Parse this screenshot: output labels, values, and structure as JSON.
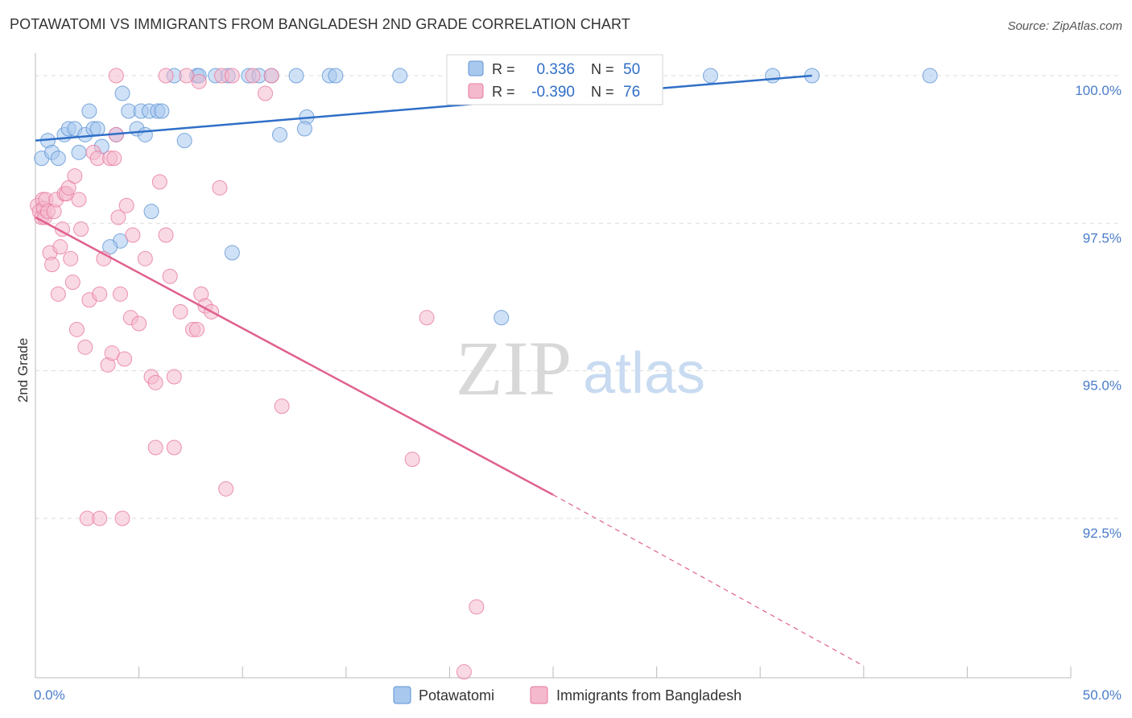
{
  "title": "POTAWATOMI VS IMMIGRANTS FROM BANGLADESH 2ND GRADE CORRELATION CHART",
  "source": "Source: ZipAtlas.com",
  "watermark": {
    "zip": "ZIP",
    "atlas": "atlas"
  },
  "colors": {
    "blue_fill": "#a8c8ee",
    "blue_stroke": "#5e93d6",
    "blue_line": "#2f6fc8",
    "pink_fill": "#f4b9cd",
    "pink_stroke": "#e7799e",
    "pink_line": "#e0608f",
    "axis_text": "#4a7cc9",
    "grid": "#dddddd"
  },
  "legend": {
    "r_label": "R =",
    "n_label": "N =",
    "rows": [
      {
        "r": "0.336",
        "n": "50"
      },
      {
        "r": "-0.390",
        "n": "76"
      }
    ]
  },
  "chart_data": {
    "type": "scatter",
    "title": "POTAWATOMI VS IMMIGRANTS FROM BANGLADESH 2ND GRADE CORRELATION CHART",
    "xlabel": "",
    "ylabel": "2nd Grade",
    "xlim": [
      0,
      50
    ],
    "ylim": [
      89.8,
      100.3
    ],
    "x_tick_labels": [
      "0.0%",
      "50.0%"
    ],
    "y_ticks": [
      100.0,
      97.5,
      95.0,
      92.5
    ],
    "y_tick_labels": [
      "100.0%",
      "97.5%",
      "95.0%",
      "92.5%"
    ],
    "grid": true,
    "legend_position": "bottom",
    "series": [
      {
        "name": "Potawatomi",
        "color": "#a8c8ee",
        "trend": {
          "x": [
            0,
            37.5
          ],
          "y": [
            98.9,
            100.0
          ]
        },
        "points": [
          [
            0.3,
            98.6
          ],
          [
            0.6,
            98.9
          ],
          [
            0.8,
            98.7
          ],
          [
            1.1,
            98.6
          ],
          [
            1.4,
            99.0
          ],
          [
            1.6,
            99.1
          ],
          [
            1.9,
            99.1
          ],
          [
            2.1,
            98.7
          ],
          [
            2.4,
            99.0
          ],
          [
            2.6,
            99.4
          ],
          [
            2.8,
            99.1
          ],
          [
            3.0,
            99.1
          ],
          [
            3.2,
            98.8
          ],
          [
            3.9,
            99.0
          ],
          [
            4.2,
            99.7
          ],
          [
            4.5,
            99.4
          ],
          [
            4.9,
            99.1
          ],
          [
            5.1,
            99.4
          ],
          [
            5.3,
            99.0
          ],
          [
            5.5,
            99.4
          ],
          [
            5.9,
            99.4
          ],
          [
            6.1,
            99.4
          ],
          [
            6.7,
            100.0
          ],
          [
            7.2,
            98.9
          ],
          [
            7.8,
            100.0
          ],
          [
            7.9,
            100.0
          ],
          [
            8.7,
            100.0
          ],
          [
            9.3,
            100.0
          ],
          [
            10.3,
            100.0
          ],
          [
            10.8,
            100.0
          ],
          [
            11.4,
            100.0
          ],
          [
            12.6,
            100.0
          ],
          [
            13.1,
            99.3
          ],
          [
            14.2,
            100.0
          ],
          [
            14.5,
            100.0
          ],
          [
            11.8,
            99.0
          ],
          [
            13.0,
            99.1
          ],
          [
            17.6,
            100.0
          ],
          [
            22.0,
            100.0
          ],
          [
            25.4,
            99.9
          ],
          [
            26.6,
            100.0
          ],
          [
            32.6,
            100.0
          ],
          [
            35.6,
            100.0
          ],
          [
            37.5,
            100.0
          ],
          [
            43.2,
            100.0
          ],
          [
            5.6,
            97.7
          ],
          [
            4.1,
            97.2
          ],
          [
            3.6,
            97.1
          ],
          [
            9.5,
            97.0
          ],
          [
            22.5,
            95.9
          ]
        ]
      },
      {
        "name": "Immigrants from Bangladesh",
        "color": "#f4b9cd",
        "trend": {
          "x": [
            0,
            25.0
          ],
          "y": [
            97.6,
            92.9
          ]
        },
        "trend_dashed": {
          "x": [
            25.0,
            40.0
          ],
          "y": [
            92.9,
            90.0
          ]
        },
        "points": [
          [
            0.1,
            97.8
          ],
          [
            0.2,
            97.7
          ],
          [
            0.3,
            97.6
          ],
          [
            0.35,
            97.9
          ],
          [
            0.4,
            97.75
          ],
          [
            0.45,
            97.6
          ],
          [
            0.5,
            97.9
          ],
          [
            0.6,
            97.7
          ],
          [
            0.7,
            97.0
          ],
          [
            0.8,
            96.8
          ],
          [
            0.9,
            97.7
          ],
          [
            1.0,
            97.9
          ],
          [
            1.1,
            96.3
          ],
          [
            1.2,
            97.1
          ],
          [
            1.3,
            97.4
          ],
          [
            1.4,
            98.0
          ],
          [
            1.5,
            98.0
          ],
          [
            1.6,
            98.1
          ],
          [
            1.7,
            96.9
          ],
          [
            1.8,
            96.5
          ],
          [
            1.9,
            98.3
          ],
          [
            2.0,
            95.7
          ],
          [
            2.1,
            97.9
          ],
          [
            2.2,
            97.4
          ],
          [
            2.4,
            95.4
          ],
          [
            2.6,
            96.2
          ],
          [
            2.8,
            98.7
          ],
          [
            3.0,
            98.6
          ],
          [
            3.1,
            96.3
          ],
          [
            3.3,
            96.9
          ],
          [
            3.5,
            95.1
          ],
          [
            3.7,
            95.3
          ],
          [
            3.6,
            98.6
          ],
          [
            3.8,
            98.6
          ],
          [
            3.9,
            99.0
          ],
          [
            4.0,
            97.6
          ],
          [
            4.1,
            96.3
          ],
          [
            4.3,
            95.2
          ],
          [
            4.4,
            97.8
          ],
          [
            4.6,
            95.9
          ],
          [
            4.7,
            97.3
          ],
          [
            5.0,
            95.8
          ],
          [
            5.3,
            96.9
          ],
          [
            5.6,
            94.9
          ],
          [
            5.8,
            94.8
          ],
          [
            6.0,
            98.2
          ],
          [
            6.3,
            97.3
          ],
          [
            6.5,
            96.6
          ],
          [
            6.7,
            94.9
          ],
          [
            7.0,
            96.0
          ],
          [
            7.3,
            100.0
          ],
          [
            7.6,
            95.7
          ],
          [
            7.8,
            95.7
          ],
          [
            8.0,
            96.3
          ],
          [
            8.2,
            96.1
          ],
          [
            8.5,
            96.0
          ],
          [
            8.9,
            98.1
          ],
          [
            9.0,
            100.0
          ],
          [
            9.5,
            100.0
          ],
          [
            10.5,
            100.0
          ],
          [
            11.1,
            99.7
          ],
          [
            11.4,
            100.0
          ],
          [
            5.8,
            93.7
          ],
          [
            6.7,
            93.7
          ],
          [
            9.2,
            93.0
          ],
          [
            2.5,
            92.5
          ],
          [
            3.1,
            92.5
          ],
          [
            4.2,
            92.5
          ],
          [
            11.9,
            94.4
          ],
          [
            18.2,
            93.5
          ],
          [
            18.9,
            95.9
          ],
          [
            20.7,
            89.9
          ],
          [
            21.3,
            91.0
          ],
          [
            3.9,
            100.0
          ],
          [
            6.3,
            100.0
          ],
          [
            7.9,
            99.9
          ]
        ]
      }
    ]
  }
}
